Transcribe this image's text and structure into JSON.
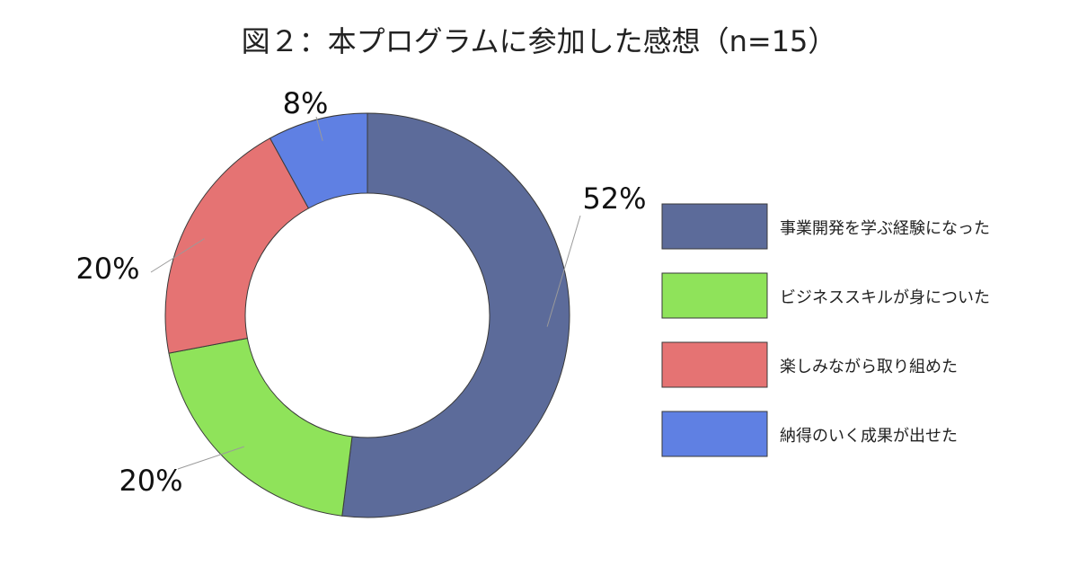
{
  "chart_data": {
    "type": "pie",
    "title": "図２：本プログラムに参加した感想（n=15）",
    "categories": [
      "事業開発を学ぶ経験になった",
      "ビジネススキルが身についた",
      "楽しみながら取り組めた",
      "納得のいく成果が出せた"
    ],
    "values": [
      52,
      20,
      20,
      8
    ],
    "value_labels": [
      "52%",
      "20%",
      "20%",
      "8%"
    ],
    "unit": "%",
    "colors": [
      "#5c6b9a",
      "#8fe35a",
      "#e57373",
      "#5f80e3"
    ],
    "donut": true,
    "legend_position": "right"
  }
}
